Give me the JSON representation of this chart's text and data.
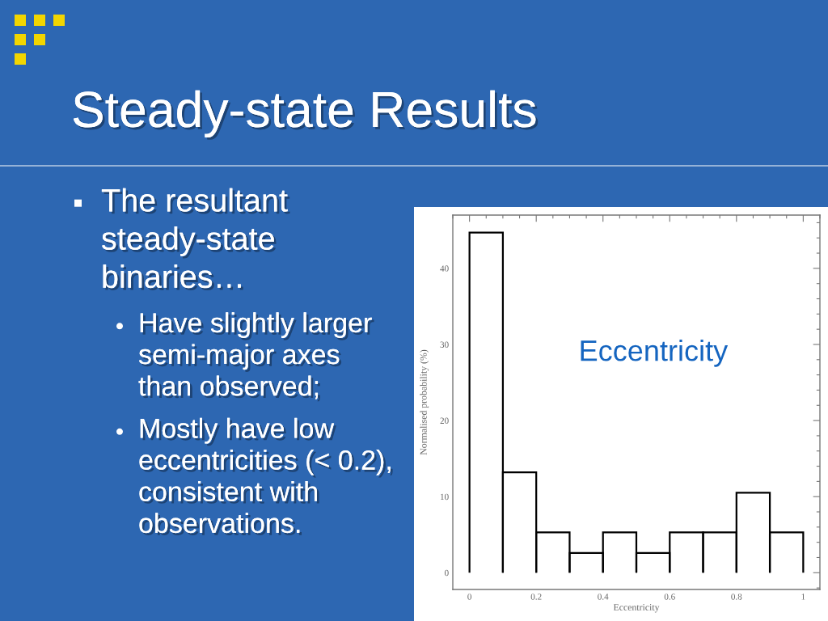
{
  "chart_data": {
    "type": "histogram",
    "title": "Steady-state Results",
    "xlabel": "Eccentricity",
    "ylabel": "Normalised probability (%)",
    "bins": [
      0,
      0.1,
      0.2,
      0.3,
      0.4,
      0.5,
      0.6,
      0.7,
      0.8,
      0.9,
      1
    ],
    "values": [
      44.7,
      13.2,
      5.3,
      2.6,
      5.3,
      2.6,
      5.3,
      5.3,
      10.5,
      5.3
    ],
    "color": "#000000",
    "xlim": [
      -0.05,
      1.05
    ],
    "ylim": [
      -2.2,
      47
    ],
    "xticks": [
      0,
      0.2,
      0.4,
      0.6,
      0.8,
      1
    ],
    "yticks": [
      0,
      10,
      20,
      30,
      40
    ],
    "grid": false,
    "annotations": [
      "The resultant\nsteady-state\nbinaries…",
      "Have slightly larger\nsemi-major axes\nthan observed;",
      "Mostly have low\neccentricities (< 0.2),\nconsistent with\nobservations.",
      "Eccentricity"
    ]
  }
}
